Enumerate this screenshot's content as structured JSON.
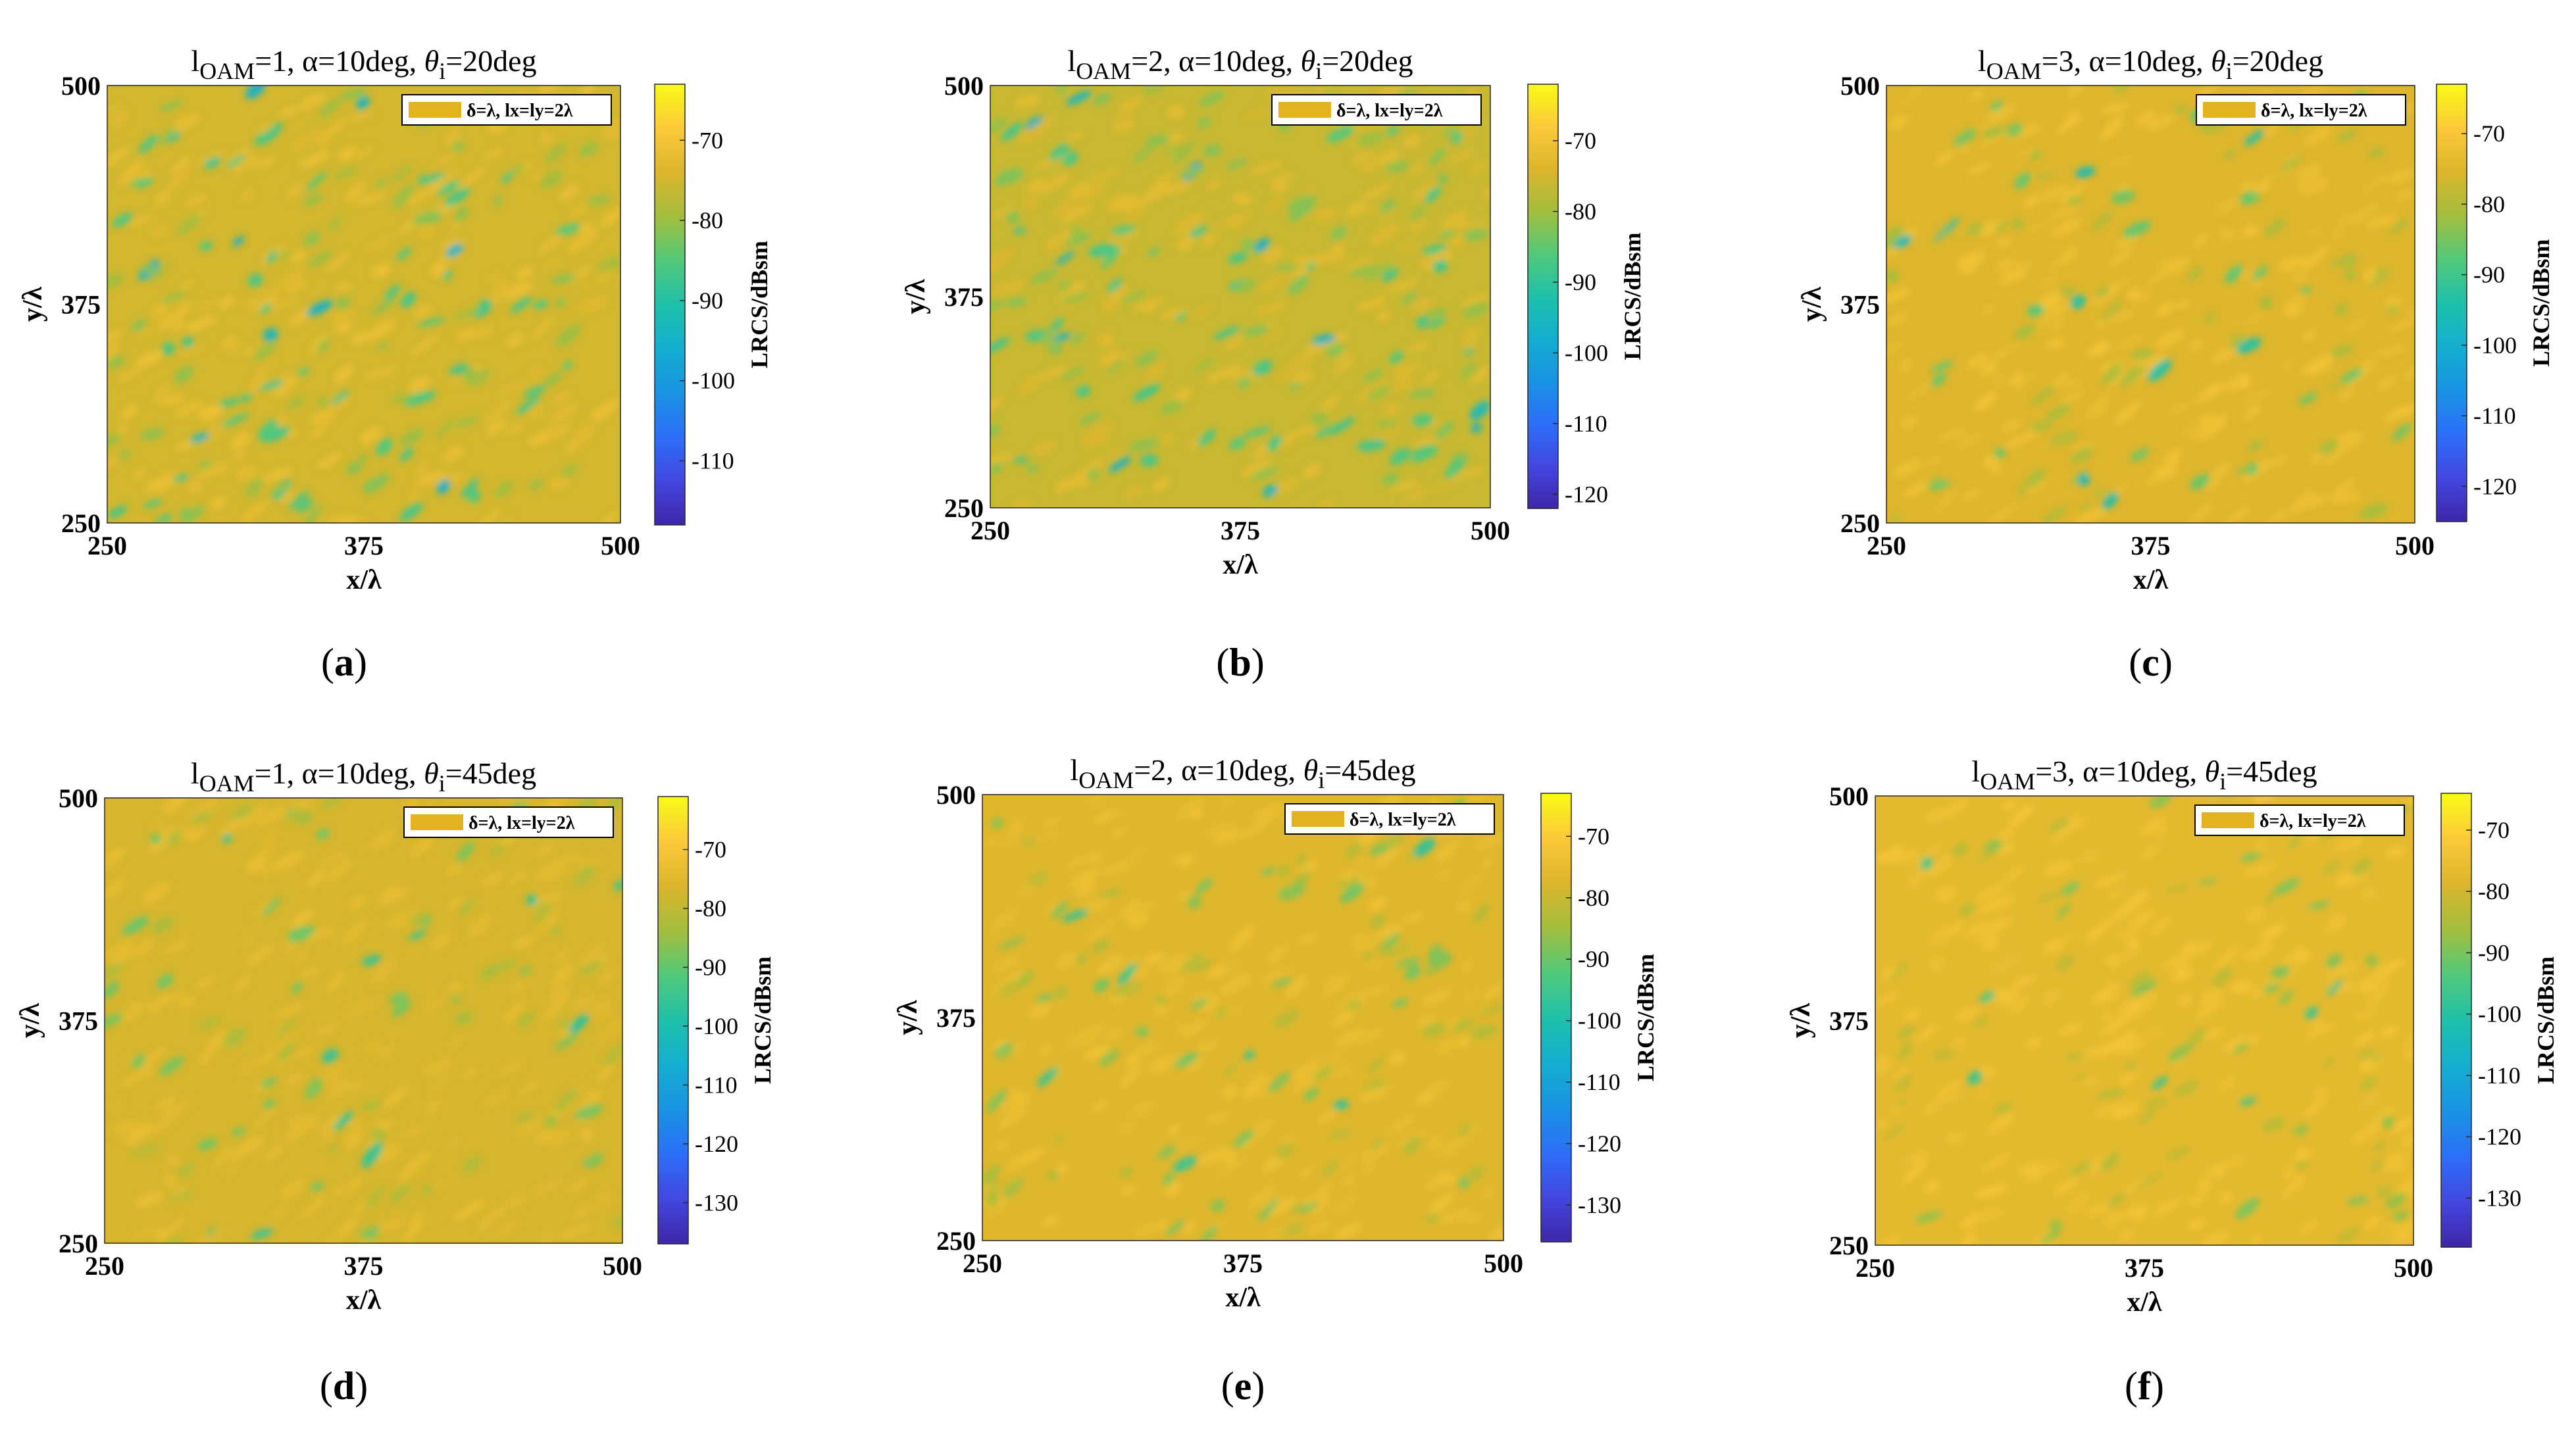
{
  "figure": {
    "colorbar_label": "LRCS/dBsm",
    "colormap": [
      "#3e26a8",
      "#4347e0",
      "#2c6ff8",
      "#1993e3",
      "#14aed0",
      "#1fc0aa",
      "#52c97a",
      "#a3be3d",
      "#dcb52c",
      "#fcc93a",
      "#f9fb15"
    ],
    "colors": {
      "legend_swatch": "#e2b21f",
      "background": "#ffffff",
      "text": "#000000"
    }
  },
  "chart_data": [
    {
      "type": "heatmap",
      "id": "a",
      "caption": "a",
      "title": {
        "l_label": "l",
        "sub": "OAM",
        "mid": "=1, α=10deg, ",
        "theta": "θ",
        "theta_sub": "i",
        "tail": "=20deg"
      },
      "xlabel": "x/λ",
      "ylabel": "y/λ",
      "xlim": [
        250,
        500
      ],
      "ylim": [
        250,
        500
      ],
      "xticks": [
        "250",
        "375",
        "500"
      ],
      "yticks": [
        "250",
        "375",
        "500"
      ],
      "legend": "δ=λ, lx=ly=2λ",
      "colorbar": {
        "label": "LRCS/dBsm",
        "range": [
          -118,
          -63
        ],
        "ticks": [
          "-70",
          "-80",
          "-90",
          "-100",
          "-110"
        ]
      },
      "field": {
        "typical_dBsm": -75,
        "low_spot_dBsm": -88,
        "spot_density": 0.9,
        "angle_deg": -32
      }
    },
    {
      "type": "heatmap",
      "id": "b",
      "caption": "b",
      "title": {
        "l_label": "l",
        "sub": "OAM",
        "mid": "=2, α=10deg, ",
        "theta": "θ",
        "theta_sub": "i",
        "tail": "=20deg"
      },
      "xlabel": "x/λ",
      "ylabel": "y/λ",
      "xlim": [
        250,
        500
      ],
      "ylim": [
        250,
        500
      ],
      "xticks": [
        "250",
        "375",
        "500"
      ],
      "yticks": [
        "250",
        "375",
        "500"
      ],
      "legend": "δ=λ, lx=ly=2λ",
      "colorbar": {
        "label": "LRCS/dBsm",
        "range": [
          -122,
          -62
        ],
        "ticks": [
          "-70",
          "-80",
          "-90",
          "-100",
          "-110",
          "-120"
        ]
      },
      "field": {
        "typical_dBsm": -76,
        "low_spot_dBsm": -89,
        "spot_density": 1.0,
        "angle_deg": -28
      }
    },
    {
      "type": "heatmap",
      "id": "c",
      "caption": "c",
      "title": {
        "l_label": "l",
        "sub": "OAM",
        "mid": "=3, α=10deg, ",
        "theta": "θ",
        "theta_sub": "i",
        "tail": "=20deg"
      },
      "xlabel": "x/λ",
      "ylabel": "y/λ",
      "xlim": [
        250,
        500
      ],
      "ylim": [
        250,
        500
      ],
      "xticks": [
        "250",
        "375",
        "500"
      ],
      "yticks": [
        "250",
        "375",
        "500"
      ],
      "legend": "δ=λ, lx=ly=2λ",
      "colorbar": {
        "label": "LRCS/dBsm",
        "range": [
          -125,
          -63
        ],
        "ticks": [
          "-70",
          "-80",
          "-90",
          "-100",
          "-110",
          "-120"
        ]
      },
      "field": {
        "typical_dBsm": -75,
        "low_spot_dBsm": -88,
        "spot_density": 0.6,
        "angle_deg": -30
      }
    },
    {
      "type": "heatmap",
      "id": "d",
      "caption": "d",
      "title": {
        "l_label": "l",
        "sub": "OAM",
        "mid": "=1, α=10deg, ",
        "theta": "θ",
        "theta_sub": "i",
        "tail": "=45deg"
      },
      "xlabel": "x/λ",
      "ylabel": "y/λ",
      "xlim": [
        250,
        500
      ],
      "ylim": [
        250,
        500
      ],
      "xticks": [
        "250",
        "375",
        "500"
      ],
      "yticks": [
        "250",
        "375",
        "500"
      ],
      "legend": "δ=λ, lx=ly=2λ",
      "colorbar": {
        "label": "LRCS/dBsm",
        "range": [
          -137,
          -61
        ],
        "ticks": [
          "-70",
          "-80",
          "-90",
          "-100",
          "-110",
          "-120",
          "-130"
        ]
      },
      "field": {
        "typical_dBsm": -77,
        "low_spot_dBsm": -90,
        "spot_density": 0.55,
        "angle_deg": -35
      }
    },
    {
      "type": "heatmap",
      "id": "e",
      "caption": "e",
      "title": {
        "l_label": "l",
        "sub": "OAM",
        "mid": "=2, α=10deg, ",
        "theta": "θ",
        "theta_sub": "i",
        "tail": "=45deg"
      },
      "xlabel": "x/λ",
      "ylabel": "y/λ",
      "xlim": [
        250,
        500
      ],
      "ylim": [
        250,
        500
      ],
      "xticks": [
        "250",
        "375",
        "500"
      ],
      "yticks": [
        "250",
        "375",
        "500"
      ],
      "legend": "δ=λ, lx=ly=2λ",
      "colorbar": {
        "label": "LRCS/dBsm",
        "range": [
          -136,
          -63
        ],
        "ticks": [
          "-70",
          "-80",
          "-90",
          "-100",
          "-110",
          "-120",
          "-130"
        ]
      },
      "field": {
        "typical_dBsm": -77,
        "low_spot_dBsm": -90,
        "spot_density": 0.65,
        "angle_deg": -33
      }
    },
    {
      "type": "heatmap",
      "id": "f",
      "caption": "f",
      "title": {
        "l_label": "l",
        "sub": "OAM",
        "mid": "=3, α=10deg, ",
        "theta": "θ",
        "theta_sub": "i",
        "tail": "=45deg"
      },
      "xlabel": "x/λ",
      "ylabel": "y/λ",
      "xlim": [
        250,
        500
      ],
      "ylim": [
        250,
        500
      ],
      "xticks": [
        "250",
        "375",
        "500"
      ],
      "yticks": [
        "250",
        "375",
        "500"
      ],
      "legend": "δ=λ, lx=ly=2λ",
      "colorbar": {
        "label": "LRCS/dBsm",
        "range": [
          -138,
          -64
        ],
        "ticks": [
          "-70",
          "-80",
          "-90",
          "-100",
          "-110",
          "-120",
          "-130"
        ]
      },
      "field": {
        "typical_dBsm": -77,
        "low_spot_dBsm": -90,
        "spot_density": 0.5,
        "angle_deg": -30
      }
    }
  ]
}
